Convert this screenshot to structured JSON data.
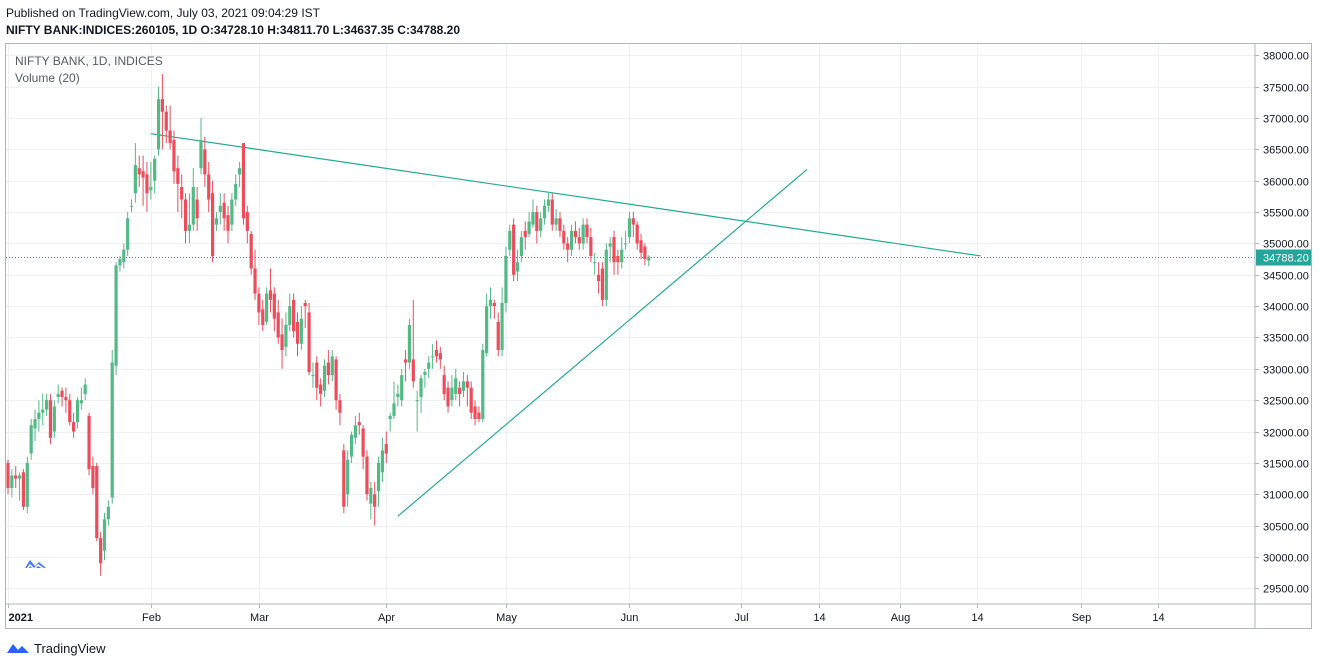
{
  "header": {
    "published": "Published on TradingView.com, July 03, 2021 09:04:29 IST",
    "ohlc": "NIFTY BANK:INDICES:260105, 1D  O:34728.10 H:34811.70 L:34637.35 C:34788.20"
  },
  "legend": {
    "symbol": "NIFTY BANK, 1D, INDICES",
    "volume": "Volume (20)"
  },
  "footer": {
    "brand": "TradingView"
  },
  "colors": {
    "up": "#53b987",
    "down": "#eb4d5c",
    "trendline": "#22ab94",
    "price_line": "#26a69a",
    "grid": "#eef0f3"
  },
  "chart_data": {
    "type": "candlestick",
    "symbol": "NIFTY BANK",
    "interval": "1D",
    "x_tick_labels": [
      "2021",
      "Feb",
      "Mar",
      "Apr",
      "May",
      "Jun",
      "Jul",
      "14",
      "Aug",
      "14",
      "Sep",
      "14"
    ],
    "x_tick_days": [
      0,
      37,
      65,
      98,
      129,
      161,
      190,
      210,
      231,
      251,
      278,
      298
    ],
    "y_tick_labels": [
      "29500.00",
      "30000.00",
      "30500.00",
      "31000.00",
      "31500.00",
      "32000.00",
      "32500.00",
      "33000.00",
      "33500.00",
      "34000.00",
      "34500.00",
      "35000.00",
      "35500.00",
      "36000.00",
      "36500.00",
      "37000.00",
      "37500.00",
      "38000.00"
    ],
    "ylim": [
      29250,
      38180
    ],
    "last_price": 34788.2,
    "last_price_label": "34788.20",
    "candles": [
      [
        31500,
        31100,
        31550,
        31000
      ],
      [
        31100,
        31300,
        31400,
        30950
      ],
      [
        31300,
        31250,
        31450,
        31100
      ],
      [
        31250,
        31300,
        31350,
        30900
      ],
      [
        31350,
        30800,
        31400,
        30750
      ],
      [
        30800,
        31500,
        31600,
        30700
      ],
      [
        31650,
        32100,
        32200,
        31550
      ],
      [
        32050,
        32200,
        32350,
        31850
      ],
      [
        32200,
        32300,
        32500,
        32000
      ],
      [
        32300,
        32350,
        32600,
        32100
      ],
      [
        32350,
        32500,
        32600,
        32250
      ],
      [
        32500,
        31900,
        32600,
        31800
      ],
      [
        32000,
        32400,
        32500,
        31900
      ],
      [
        32550,
        32600,
        32750,
        32450
      ],
      [
        32650,
        32550,
        32700,
        32400
      ],
      [
        32550,
        32500,
        32700,
        32300
      ],
      [
        32500,
        32150,
        32600,
        32100
      ],
      [
        32150,
        32000,
        32300,
        31900
      ],
      [
        32150,
        32500,
        32550,
        32050
      ],
      [
        32450,
        32500,
        32700,
        32350
      ],
      [
        32600,
        32750,
        32850,
        32500
      ],
      [
        32250,
        31400,
        32300,
        31300
      ],
      [
        31450,
        31100,
        31600,
        31000
      ],
      [
        31450,
        30300,
        31500,
        30250
      ],
      [
        30300,
        29900,
        30400,
        29700
      ],
      [
        30100,
        30600,
        30700,
        29950
      ],
      [
        30600,
        30800,
        30900,
        30500
      ],
      [
        30950,
        33100,
        33300,
        30850
      ],
      [
        33050,
        34650,
        34700,
        32900
      ],
      [
        34650,
        34750,
        34800,
        34550
      ],
      [
        34700,
        34900,
        35000,
        34600
      ],
      [
        34900,
        35400,
        35500,
        34800
      ],
      [
        35600,
        35600,
        35700,
        35500
      ],
      [
        35800,
        36250,
        36600,
        35650
      ],
      [
        36200,
        36100,
        36400,
        35900
      ],
      [
        36150,
        36050,
        36400,
        35600
      ],
      [
        36100,
        35800,
        36300,
        35500
      ],
      [
        35850,
        35900,
        36300,
        35700
      ],
      [
        36000,
        36350,
        36400,
        35800
      ],
      [
        36500,
        37300,
        37500,
        36400
      ],
      [
        37300,
        37100,
        37700,
        36500
      ],
      [
        37100,
        36800,
        37200,
        36600
      ],
      [
        36800,
        36600,
        37200,
        36500
      ],
      [
        36650,
        36150,
        36800,
        35950
      ],
      [
        36200,
        35950,
        36400,
        35500
      ],
      [
        35900,
        35700,
        36100,
        35400
      ],
      [
        35700,
        35200,
        35800,
        35000
      ],
      [
        35200,
        35300,
        35800,
        35000
      ],
      [
        35300,
        35900,
        36200,
        35200
      ],
      [
        35700,
        35400,
        35900,
        35200
      ],
      [
        36200,
        36650,
        37000,
        36100
      ],
      [
        36500,
        36100,
        36700,
        35900
      ],
      [
        36100,
        35700,
        36300,
        35500
      ],
      [
        35800,
        34800,
        36000,
        34700
      ],
      [
        35300,
        35400,
        35500,
        35200
      ],
      [
        35500,
        35600,
        35800,
        35300
      ],
      [
        35650,
        35400,
        35800,
        35200
      ],
      [
        35450,
        35200,
        35600,
        35000
      ],
      [
        35300,
        35700,
        35800,
        35200
      ],
      [
        35700,
        35950,
        36100,
        35600
      ],
      [
        36100,
        36200,
        36300,
        35900
      ],
      [
        36600,
        35400,
        36600,
        35300
      ],
      [
        35500,
        35200,
        35600,
        35000
      ],
      [
        35150,
        34600,
        35200,
        34500
      ],
      [
        34600,
        34200,
        34900,
        34100
      ],
      [
        34200,
        33900,
        34300,
        33700
      ],
      [
        33950,
        33700,
        34100,
        33600
      ],
      [
        33750,
        34200,
        34300,
        33700
      ],
      [
        34250,
        34100,
        34600,
        33900
      ],
      [
        34200,
        33800,
        34300,
        33600
      ],
      [
        33900,
        33500,
        34100,
        33400
      ],
      [
        33550,
        33300,
        33800,
        33000
      ],
      [
        33350,
        33700,
        33900,
        33200
      ],
      [
        33700,
        34000,
        34200,
        33600
      ],
      [
        34100,
        33600,
        34200,
        33500
      ],
      [
        33750,
        33400,
        33900,
        33200
      ],
      [
        33400,
        33800,
        34000,
        33300
      ],
      [
        34050,
        34000,
        34100,
        33650
      ],
      [
        33900,
        32950,
        34050,
        32900
      ],
      [
        32900,
        32900,
        33100,
        32700
      ],
      [
        33100,
        32700,
        33200,
        32500
      ],
      [
        32750,
        32600,
        32850,
        32400
      ],
      [
        32650,
        33050,
        33150,
        32550
      ],
      [
        33100,
        32900,
        33300,
        32750
      ],
      [
        32900,
        33200,
        33300,
        32800
      ],
      [
        33150,
        32500,
        33200,
        32350
      ],
      [
        32500,
        32300,
        32600,
        32100
      ],
      [
        31700,
        30800,
        31800,
        30700
      ],
      [
        31000,
        31550,
        31700,
        30800
      ],
      [
        31600,
        31950,
        32000,
        31500
      ],
      [
        31900,
        32100,
        32250,
        31800
      ],
      [
        32150,
        32100,
        32300,
        31950
      ],
      [
        32050,
        31600,
        32100,
        31400
      ],
      [
        31600,
        31000,
        31700,
        30900
      ],
      [
        30850,
        31100,
        31200,
        30600
      ],
      [
        31000,
        30800,
        31200,
        30500
      ],
      [
        31050,
        31500,
        31600,
        30800
      ],
      [
        31350,
        31700,
        31900,
        31200
      ],
      [
        31800,
        31650,
        32000,
        31500
      ],
      [
        32200,
        32250,
        32300,
        32000
      ],
      [
        32250,
        32450,
        32800,
        32200
      ],
      [
        32550,
        32600,
        32750,
        32400
      ],
      [
        32500,
        32900,
        33000,
        32400
      ],
      [
        33150,
        33100,
        33300,
        32800
      ],
      [
        33100,
        33700,
        33800,
        33000
      ],
      [
        33150,
        32800,
        34100,
        32700
      ],
      [
        32500,
        32500,
        32650,
        32000
      ],
      [
        32550,
        32850,
        32900,
        32300
      ],
      [
        32900,
        32950,
        33000,
        32700
      ],
      [
        33000,
        33100,
        33200,
        32850
      ],
      [
        33200,
        33200,
        33400,
        33000
      ],
      [
        33300,
        33200,
        33450,
        33100
      ],
      [
        33250,
        33150,
        33350,
        33000
      ],
      [
        32900,
        32600,
        33050,
        32500
      ],
      [
        32700,
        32400,
        32800,
        32300
      ],
      [
        32500,
        32700,
        32900,
        32400
      ],
      [
        32600,
        32850,
        33000,
        32500
      ],
      [
        32700,
        32600,
        32800,
        32400
      ],
      [
        32650,
        32800,
        32950,
        32550
      ],
      [
        32800,
        32700,
        32900,
        32400
      ],
      [
        32700,
        32300,
        32800,
        32200
      ],
      [
        32400,
        32200,
        32500,
        32100
      ],
      [
        32300,
        32200,
        32400,
        32150
      ],
      [
        32200,
        33300,
        33400,
        32150
      ],
      [
        33250,
        34000,
        34200,
        33200
      ],
      [
        34000,
        34100,
        34300,
        33800
      ],
      [
        34050,
        34000,
        34100,
        33800
      ],
      [
        33750,
        33300,
        33900,
        33200
      ],
      [
        33300,
        34050,
        34300,
        33200
      ],
      [
        34050,
        34800,
        34950,
        33900
      ],
      [
        34900,
        35200,
        35300,
        34800
      ],
      [
        35300,
        34500,
        35400,
        34400
      ],
      [
        34550,
        34700,
        34900,
        34400
      ],
      [
        34800,
        35100,
        35200,
        34700
      ],
      [
        35200,
        35100,
        35350,
        34900
      ],
      [
        35150,
        35350,
        35500,
        35100
      ],
      [
        35300,
        35500,
        35700,
        35250
      ],
      [
        35500,
        35200,
        35600,
        35000
      ],
      [
        35200,
        35400,
        35500,
        35100
      ],
      [
        35400,
        35600,
        35700,
        35300
      ],
      [
        35600,
        35700,
        35800,
        35500
      ],
      [
        35700,
        35300,
        35800,
        35200
      ],
      [
        35300,
        35400,
        35550,
        35200
      ],
      [
        35400,
        35200,
        35500,
        35100
      ],
      [
        35200,
        35000,
        35300,
        34900
      ],
      [
        35000,
        34900,
        35100,
        34700
      ],
      [
        34900,
        35200,
        35300,
        34800
      ],
      [
        35200,
        35100,
        35350,
        35000
      ],
      [
        35100,
        35000,
        35250,
        34900
      ],
      [
        35000,
        35300,
        35400,
        34900
      ],
      [
        35300,
        35100,
        35400,
        35000
      ],
      [
        35100,
        34800,
        35250,
        34700
      ],
      [
        34700,
        34700,
        34850,
        34500
      ],
      [
        34500,
        34400,
        34700,
        34200
      ],
      [
        34600,
        34100,
        34700,
        34000
      ],
      [
        34100,
        34900,
        35000,
        34000
      ],
      [
        34950,
        35000,
        35100,
        34700
      ],
      [
        35100,
        34700,
        35200,
        34500
      ],
      [
        34800,
        34700,
        34900,
        34500
      ],
      [
        34700,
        34900,
        35100,
        34600
      ],
      [
        35000,
        35000,
        35200,
        34900
      ],
      [
        35100,
        35400,
        35500,
        35000
      ],
      [
        35400,
        35300,
        35500,
        35100
      ],
      [
        35300,
        35000,
        35350,
        34900
      ],
      [
        35050,
        34850,
        35150,
        34750
      ],
      [
        34950,
        34750,
        35000,
        34650
      ],
      [
        34728.1,
        34788.2,
        34811.7,
        34637.35
      ]
    ],
    "trendlines": [
      {
        "name": "descending",
        "from": [
          37,
          36750
        ],
        "to": [
          252,
          34800
        ]
      },
      {
        "name": "ascending",
        "from": [
          101,
          30650
        ],
        "to": [
          207,
          36180
        ]
      }
    ]
  }
}
